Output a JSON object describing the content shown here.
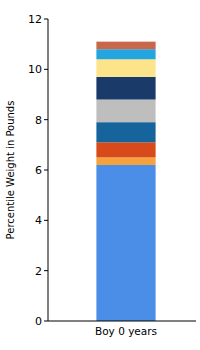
{
  "chart_data": {
    "type": "bar",
    "stacked": true,
    "y_label": "Percentile Weight in Pounds",
    "categories": [
      "Boy 0 years"
    ],
    "series": [
      {
        "color": "#4a8ee8",
        "values": [
          6.2
        ]
      },
      {
        "color": "#f5a13c",
        "values": [
          0.3
        ]
      },
      {
        "color": "#d84a1a",
        "values": [
          0.6
        ]
      },
      {
        "color": "#16649c",
        "values": [
          0.8
        ]
      },
      {
        "color": "#bebebe",
        "values": [
          0.9
        ]
      },
      {
        "color": "#1a3a6a",
        "values": [
          0.9
        ]
      },
      {
        "color": "#fde38a",
        "values": [
          0.7
        ]
      },
      {
        "color": "#23a6e0",
        "values": [
          0.4
        ]
      },
      {
        "color": "#c8674a",
        "values": [
          0.3
        ]
      }
    ],
    "ylim": [
      0,
      12
    ],
    "yticks": [
      0,
      2,
      4,
      6,
      8,
      10,
      12
    ],
    "grid": false
  }
}
